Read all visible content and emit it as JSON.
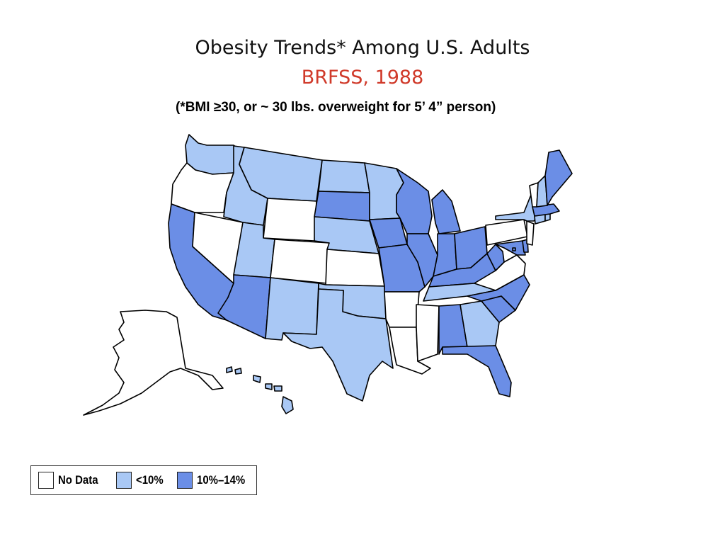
{
  "title": "Obesity Trends* Among U.S. Adults",
  "subtitle": "BRFSS, 1988",
  "footnote": "(*BMI ≥30, or ~ 30 lbs. overweight for 5’ 4” person)",
  "colors": {
    "no_data": "#ffffff",
    "lt10": "#a9c8f5",
    "10to14": "#6b8ee6",
    "subtitle": "#d03a2a",
    "outline": "#000000"
  },
  "legend": {
    "items": [
      {
        "key": "no_data",
        "label": "No Data",
        "color": "#ffffff"
      },
      {
        "key": "lt10",
        "label": "<10%",
        "color": "#a9c8f5"
      },
      {
        "key": "10to14",
        "label": "10%–14%",
        "color": "#6b8ee6"
      }
    ]
  },
  "states": {
    "WA": "lt10",
    "OR": "no_data",
    "CA": "10to14",
    "NV": "no_data",
    "ID": "lt10",
    "MT": "lt10",
    "WY": "no_data",
    "UT": "lt10",
    "AZ": "10to14",
    "CO": "no_data",
    "NM": "lt10",
    "ND": "lt10",
    "SD": "10to14",
    "NE": "lt10",
    "KS": "no_data",
    "OK": "lt10",
    "TX": "lt10",
    "MN": "lt10",
    "IA": "10to14",
    "MO": "10to14",
    "AR": "no_data",
    "LA": "no_data",
    "WI": "10to14",
    "IL": "10to14",
    "MI": "10to14",
    "IN": "10to14",
    "OH": "10to14",
    "KY": "10to14",
    "TN": "lt10",
    "MS": "no_data",
    "AL": "10to14",
    "GA": "lt10",
    "FL": "10to14",
    "SC": "10to14",
    "NC": "10to14",
    "VA": "no_data",
    "WV": "10to14",
    "MD": "10to14",
    "DE": "10to14",
    "PA": "no_data",
    "NJ": "no_data",
    "NY": "lt10",
    "CT": "lt10",
    "RI": "lt10",
    "MA": "10to14",
    "VT": "no_data",
    "NH": "lt10",
    "ME": "10to14",
    "AK": "no_data",
    "HI": "lt10",
    "DC": "10to14"
  }
}
